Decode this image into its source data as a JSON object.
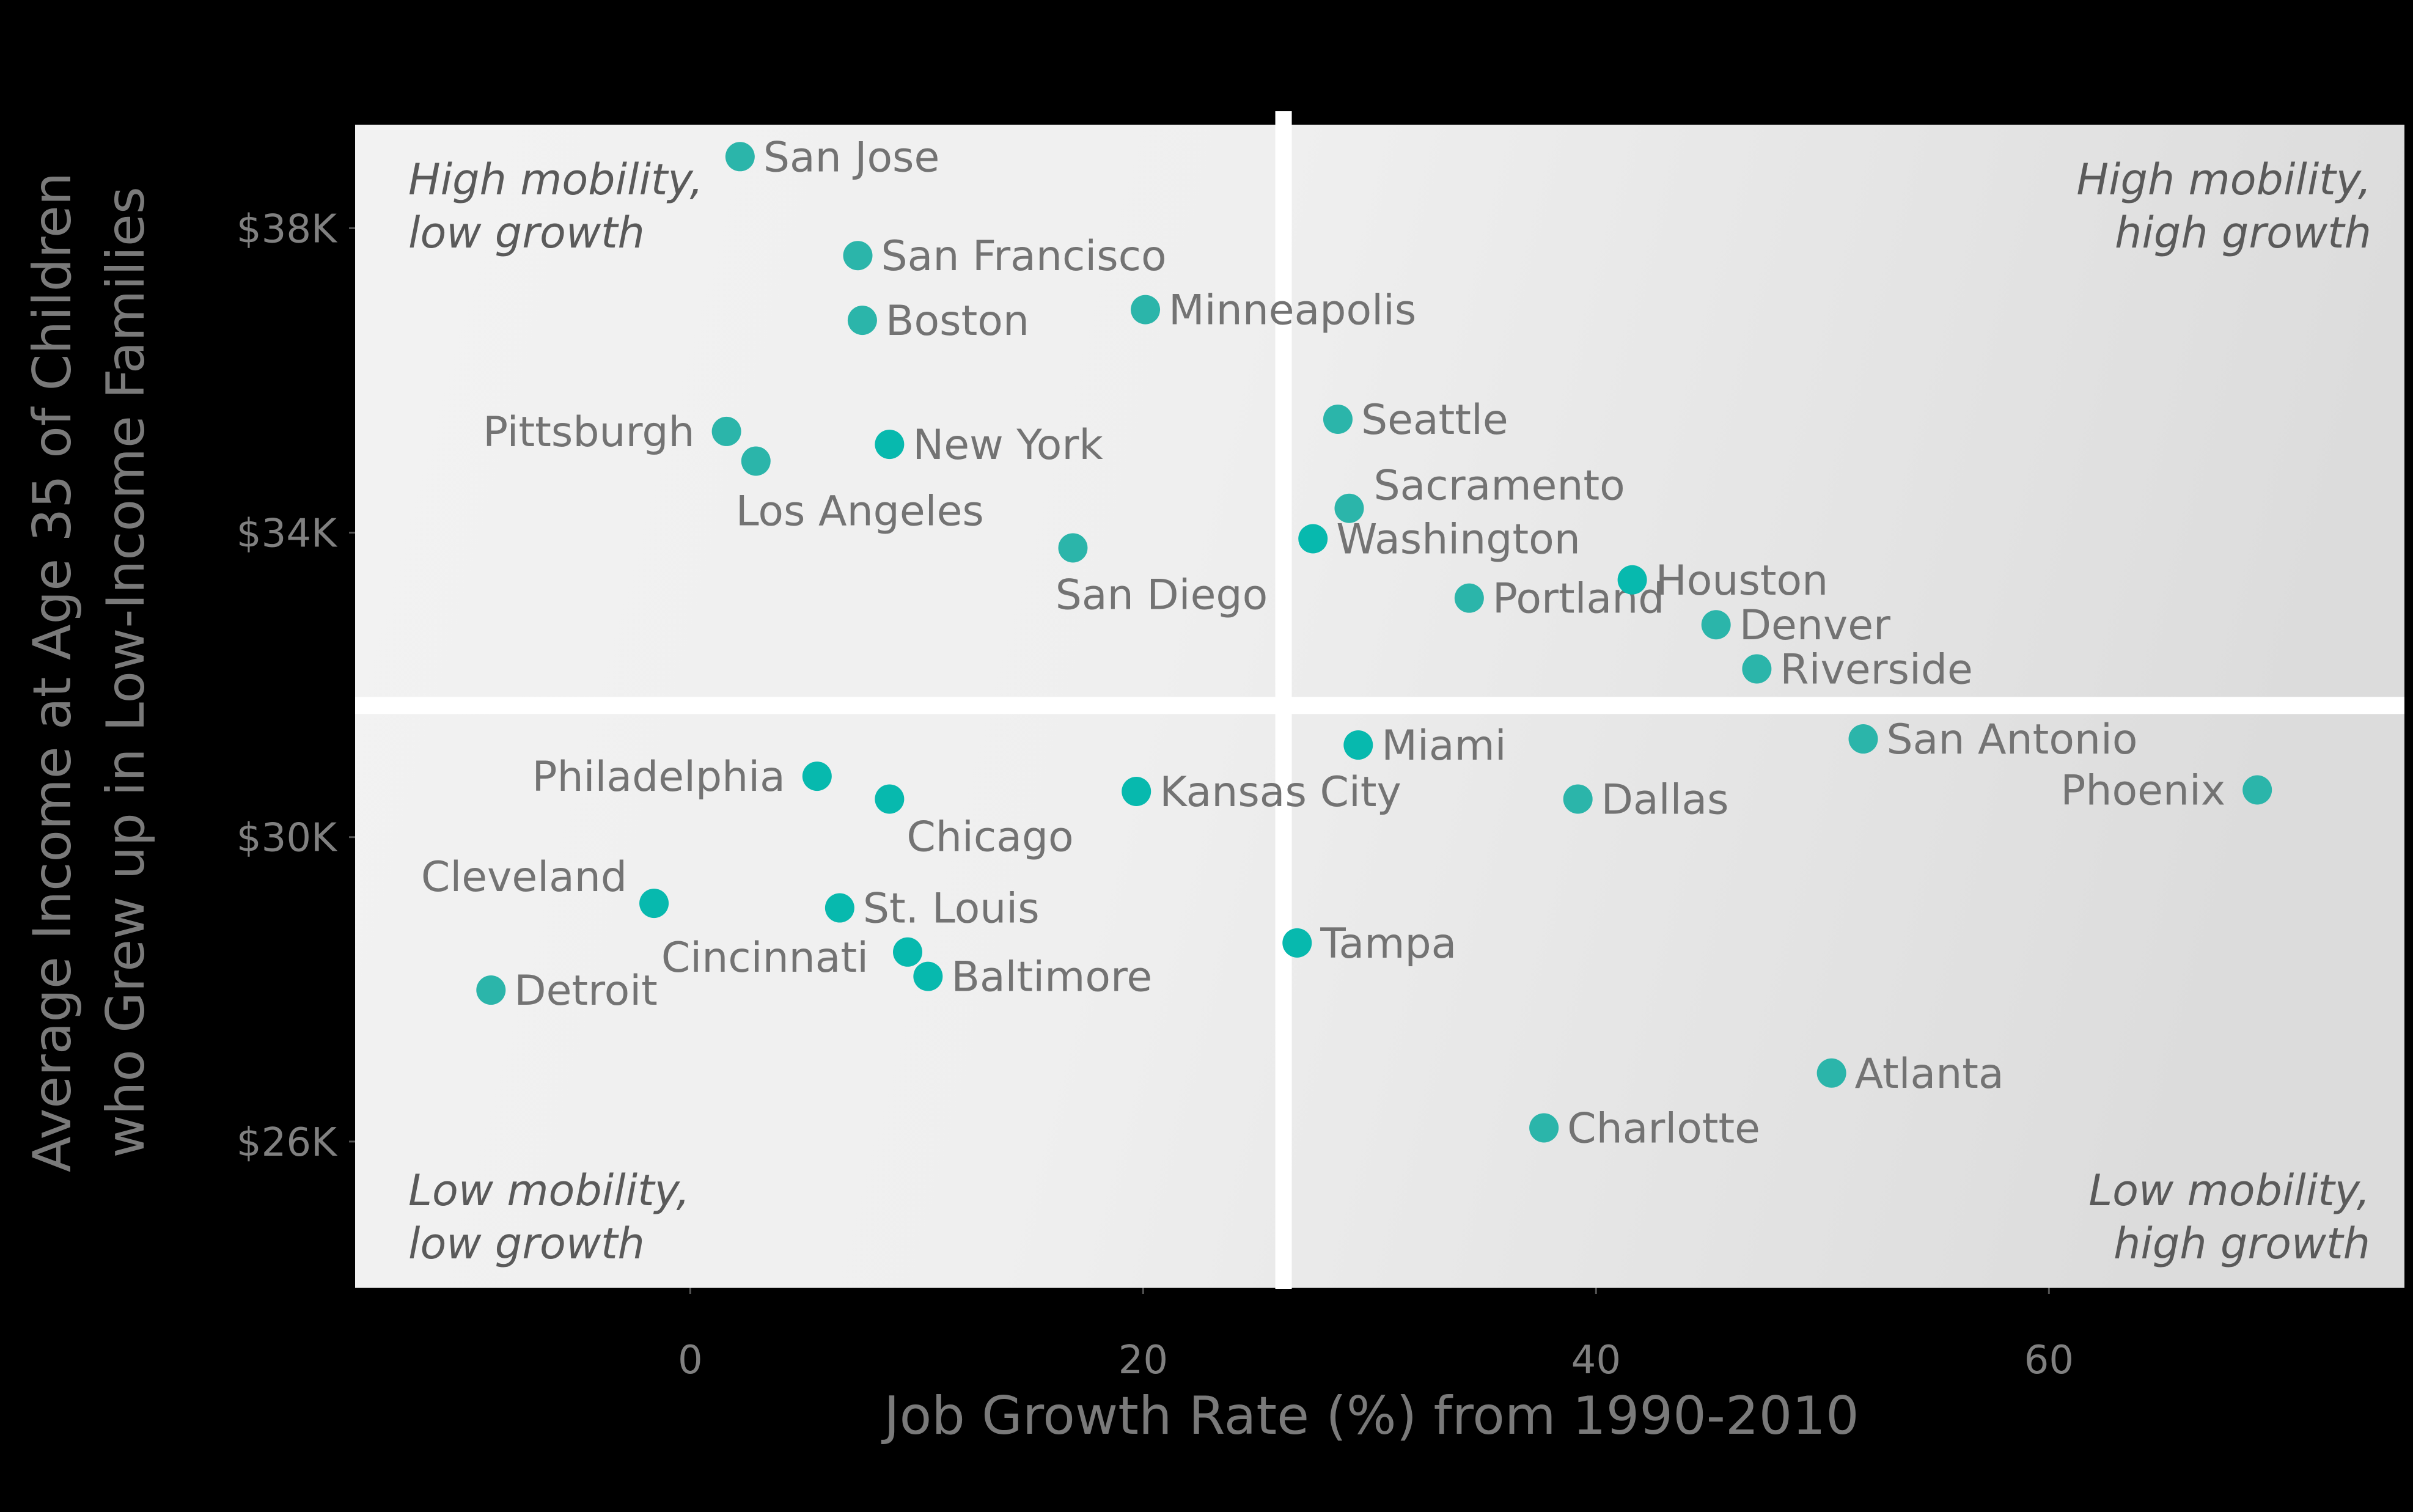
{
  "chart_data": {
    "type": "scatter",
    "title": "",
    "xlabel": "Job Growth Rate (%) from 1990-2010",
    "ylabel_lines": [
      "Average Income at Age 35 of Children",
      "who Grew up in Low-Income Families"
    ],
    "xlim": [
      -14.8,
      75.7
    ],
    "ylim": [
      24.08,
      39.36
    ],
    "x_ticks": [
      0,
      20,
      40,
      60
    ],
    "x_tick_labels": [
      "0",
      "20",
      "40",
      "60"
    ],
    "y_ticks": [
      26,
      30,
      34,
      38
    ],
    "y_tick_labels": [
      "$26K",
      "$30K",
      "$34K",
      "$38K"
    ],
    "y_units": "thousands of USD",
    "grid": false,
    "reference_lines": {
      "x": 26.2,
      "y": 31.73
    },
    "quadrant_labels": {
      "top_left": [
        "High mobility,",
        "low growth"
      ],
      "top_right": [
        "High mobility,",
        "high growth"
      ],
      "bottom_left": [
        "Low mobility,",
        "low growth"
      ],
      "bottom_right": [
        "Low mobility,",
        "high growth"
      ]
    },
    "colors": {
      "point_primary": "#2bb5aa",
      "point_highlight": "#07b9ae",
      "panel_light": "#f2f2f2",
      "panel_dark": "#dcdcdc",
      "background": "#000000"
    },
    "points": [
      {
        "city": "San Jose",
        "x": 2.2,
        "y": 38.94,
        "label_pos": "right",
        "highlight": false
      },
      {
        "city": "San Francisco",
        "x": 7.4,
        "y": 37.64,
        "label_pos": "right",
        "highlight": false
      },
      {
        "city": "Boston",
        "x": 7.6,
        "y": 36.79,
        "label_pos": "right",
        "highlight": false
      },
      {
        "city": "Minneapolis",
        "x": 20.1,
        "y": 36.93,
        "label_pos": "right",
        "highlight": false
      },
      {
        "city": "Pittsburgh",
        "x": 1.6,
        "y": 35.33,
        "label_pos": "left",
        "highlight": false
      },
      {
        "city": "Los Angeles",
        "x": 2.9,
        "y": 34.94,
        "label_pos": "below",
        "highlight": false
      },
      {
        "city": "New York",
        "x": 8.8,
        "y": 35.16,
        "label_pos": "right",
        "highlight": true
      },
      {
        "city": "San Diego",
        "x": 16.9,
        "y": 33.8,
        "label_pos": "below",
        "highlight": false
      },
      {
        "city": "Seattle",
        "x": 28.6,
        "y": 35.49,
        "label_pos": "right",
        "highlight": false
      },
      {
        "city": "Sacramento",
        "x": 29.1,
        "y": 34.32,
        "label_pos": "above-right",
        "highlight": false
      },
      {
        "city": "Washington",
        "x": 27.5,
        "y": 33.92,
        "label_pos": "right",
        "highlight": true
      },
      {
        "city": "Portland",
        "x": 34.4,
        "y": 33.14,
        "label_pos": "right",
        "highlight": false
      },
      {
        "city": "Houston",
        "x": 41.6,
        "y": 33.38,
        "label_pos": "right",
        "highlight": true
      },
      {
        "city": "Denver",
        "x": 45.3,
        "y": 32.79,
        "label_pos": "right",
        "highlight": false
      },
      {
        "city": "Riverside",
        "x": 47.1,
        "y": 32.21,
        "label_pos": "right",
        "highlight": false
      },
      {
        "city": "Miami",
        "x": 29.5,
        "y": 31.21,
        "label_pos": "right",
        "highlight": true
      },
      {
        "city": "San Antonio",
        "x": 51.8,
        "y": 31.29,
        "label_pos": "right",
        "highlight": false
      },
      {
        "city": "Phoenix",
        "x": 69.2,
        "y": 30.62,
        "label_pos": "left",
        "highlight": false
      },
      {
        "city": "Dallas",
        "x": 39.2,
        "y": 30.5,
        "label_pos": "right",
        "highlight": false
      },
      {
        "city": "Kansas City",
        "x": 19.7,
        "y": 30.6,
        "label_pos": "right",
        "highlight": true
      },
      {
        "city": "Philadelphia",
        "x": 5.6,
        "y": 30.8,
        "label_pos": "left",
        "highlight": true
      },
      {
        "city": "Chicago",
        "x": 8.8,
        "y": 30.5,
        "label_pos": "below-right",
        "highlight": true
      },
      {
        "city": "Cleveland",
        "x": -1.6,
        "y": 29.13,
        "label_pos": "above-left",
        "highlight": true
      },
      {
        "city": "St. Louis",
        "x": 6.6,
        "y": 29.07,
        "label_pos": "right",
        "highlight": true
      },
      {
        "city": "Cincinnati",
        "x": 9.6,
        "y": 28.49,
        "label_pos": "left",
        "highlight": true
      },
      {
        "city": "Baltimore",
        "x": 10.5,
        "y": 28.17,
        "label_pos": "right",
        "highlight": true
      },
      {
        "city": "Detroit",
        "x": -8.8,
        "y": 27.99,
        "label_pos": "right",
        "highlight": false
      },
      {
        "city": "Tampa",
        "x": 26.8,
        "y": 28.61,
        "label_pos": "right",
        "highlight": true
      },
      {
        "city": "Atlanta",
        "x": 50.4,
        "y": 26.9,
        "label_pos": "right",
        "highlight": false
      },
      {
        "city": "Charlotte",
        "x": 37.7,
        "y": 26.18,
        "label_pos": "right",
        "highlight": false
      }
    ]
  }
}
